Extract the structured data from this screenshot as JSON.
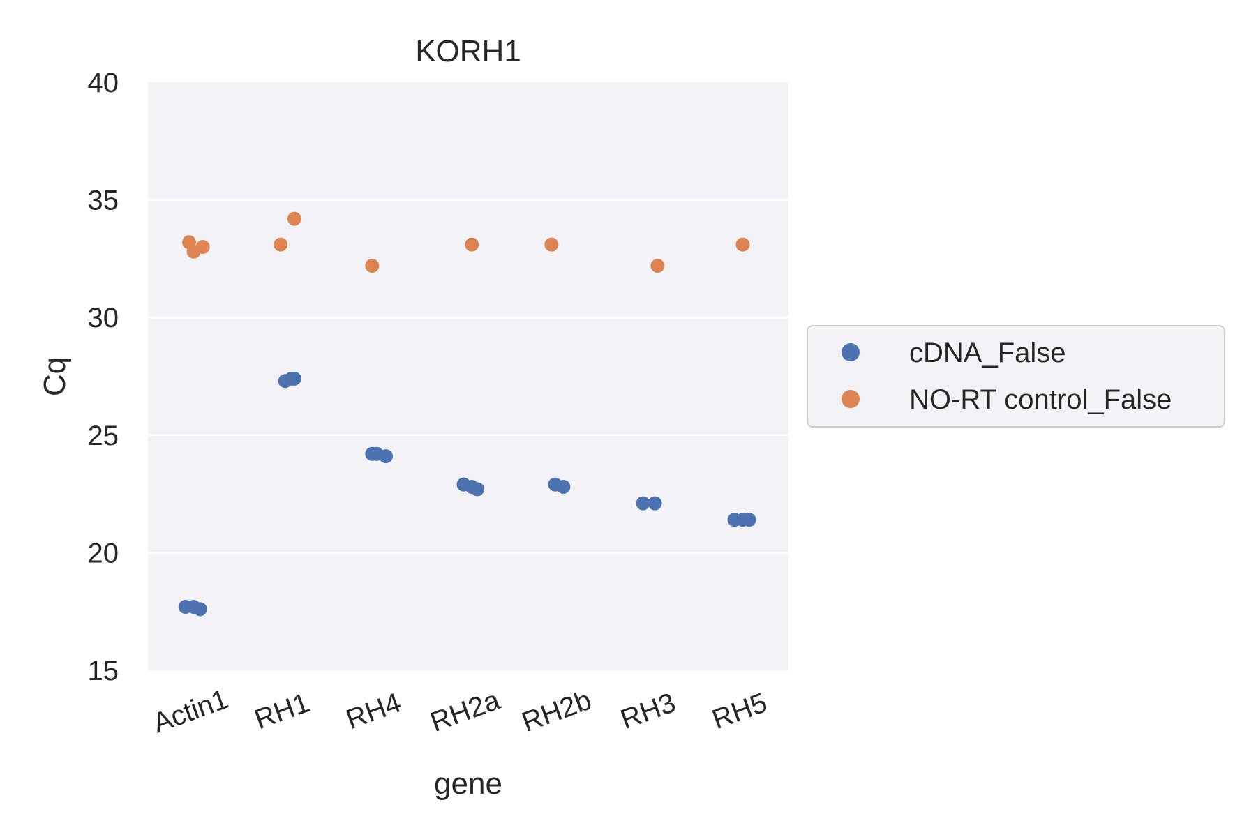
{
  "chart_data": {
    "type": "scatter",
    "title": "KORH1",
    "xlabel": "gene",
    "ylabel": "Cq",
    "ylim": [
      15,
      40
    ],
    "yticks": [
      "15",
      "20",
      "25",
      "30",
      "35",
      "40"
    ],
    "categories": [
      "Actin1",
      "RH1",
      "RH4",
      "RH2a",
      "RH2b",
      "RH3",
      "RH5"
    ],
    "grid": true,
    "legend_position": "right",
    "series": [
      {
        "name": "cDNA_False",
        "color": "#4C72B0",
        "points": [
          {
            "x": "Actin1",
            "y": 17.7
          },
          {
            "x": "Actin1",
            "y": 17.6
          },
          {
            "x": "Actin1",
            "y": 17.7
          },
          {
            "x": "RH1",
            "y": 27.4
          },
          {
            "x": "RH1",
            "y": 27.3
          },
          {
            "x": "RH1",
            "y": 27.4
          },
          {
            "x": "RH4",
            "y": 24.2
          },
          {
            "x": "RH4",
            "y": 24.1
          },
          {
            "x": "RH4",
            "y": 24.2
          },
          {
            "x": "RH2a",
            "y": 22.7
          },
          {
            "x": "RH2a",
            "y": 22.9
          },
          {
            "x": "RH2a",
            "y": 22.8
          },
          {
            "x": "RH2b",
            "y": 22.9
          },
          {
            "x": "RH2b",
            "y": 22.8
          },
          {
            "x": "RH3",
            "y": 22.1
          },
          {
            "x": "RH3",
            "y": 22.1
          },
          {
            "x": "RH5",
            "y": 21.4
          },
          {
            "x": "RH5",
            "y": 21.4
          },
          {
            "x": "RH5",
            "y": 21.4
          }
        ]
      },
      {
        "name": "NO-RT control_False",
        "color": "#DD8452",
        "points": [
          {
            "x": "Actin1",
            "y": 32.8
          },
          {
            "x": "Actin1",
            "y": 33.0
          },
          {
            "x": "Actin1",
            "y": 33.2
          },
          {
            "x": "RH1",
            "y": 34.2
          },
          {
            "x": "RH1",
            "y": 33.1
          },
          {
            "x": "RH4",
            "y": 32.2
          },
          {
            "x": "RH2a",
            "y": 33.1
          },
          {
            "x": "RH2b",
            "y": 33.1
          },
          {
            "x": "RH3",
            "y": 32.2
          },
          {
            "x": "RH5",
            "y": 33.1
          }
        ]
      }
    ]
  }
}
